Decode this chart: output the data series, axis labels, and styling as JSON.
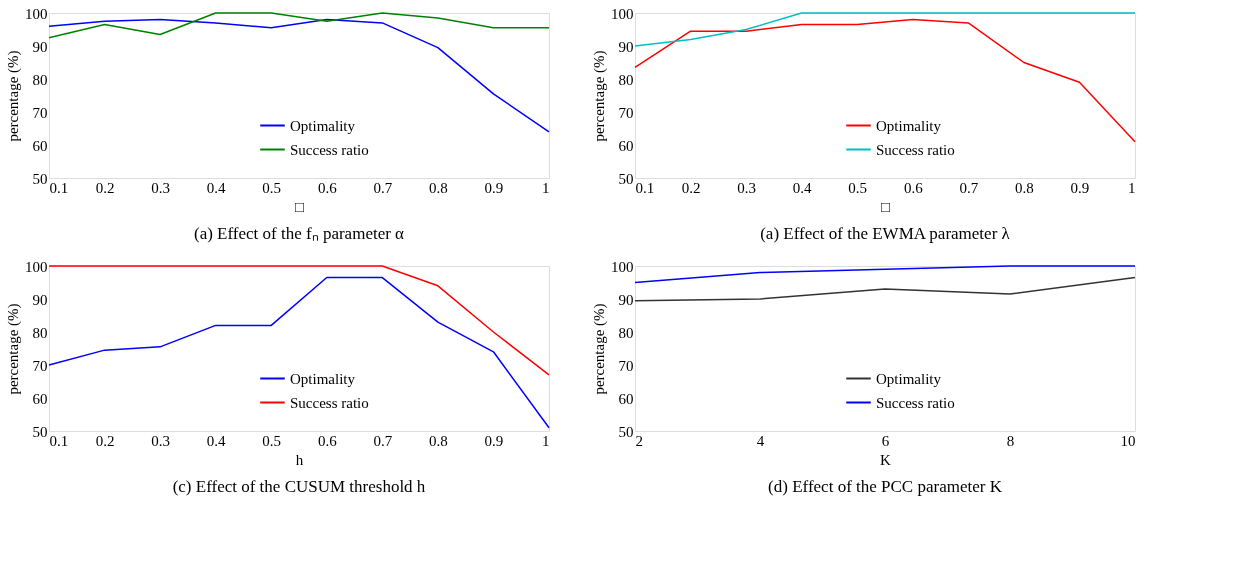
{
  "chart_data": [
    {
      "type": "line",
      "title": "(a)  Effect of the fₙ parameter  α",
      "xlabel": "□",
      "ylabel": "percentage (%)",
      "x": [
        0.1,
        0.2,
        0.3,
        0.4,
        0.5,
        0.6,
        0.7,
        0.8,
        0.9,
        1
      ],
      "xlim": [
        0.1,
        1
      ],
      "xticks": [
        0.1,
        0.2,
        0.3,
        0.4,
        0.5,
        0.6,
        0.7,
        0.8,
        0.9,
        1
      ],
      "ylim": [
        50,
        100
      ],
      "yticks": [
        50,
        60,
        70,
        80,
        90,
        100
      ],
      "legend": "bottom",
      "grid": false,
      "series": [
        {
          "name": "Optimality",
          "color": "#0000ff",
          "values": [
            96,
            97.5,
            98,
            97,
            95.5,
            98,
            97,
            89.5,
            75.5,
            64
          ]
        },
        {
          "name": "Success ratio",
          "color": "#008000",
          "values": [
            92.5,
            96.5,
            93.5,
            100,
            100,
            97.5,
            100,
            98.5,
            95.5,
            95.5
          ]
        }
      ]
    },
    {
      "type": "line",
      "title": "(a)  Effect of the EWMA parameter λ",
      "xlabel": "□",
      "ylabel": "percentage (%)",
      "x": [
        0.1,
        0.2,
        0.3,
        0.4,
        0.5,
        0.6,
        0.7,
        0.8,
        0.9,
        1
      ],
      "xlim": [
        0.1,
        1
      ],
      "xticks": [
        0.1,
        0.2,
        0.3,
        0.4,
        0.5,
        0.6,
        0.7,
        0.8,
        0.9,
        1
      ],
      "ylim": [
        50,
        100
      ],
      "yticks": [
        50,
        60,
        70,
        80,
        90,
        100
      ],
      "legend": "bottom",
      "grid": false,
      "series": [
        {
          "name": "Optimality",
          "color": "#ff0000",
          "values": [
            83.5,
            94.5,
            94.5,
            96.5,
            96.5,
            98,
            97,
            85,
            79,
            61
          ]
        },
        {
          "name": "Success ratio",
          "color": "#00bfbf",
          "values": [
            90,
            92,
            95,
            100,
            100,
            100,
            100,
            100,
            100,
            100
          ]
        }
      ]
    },
    {
      "type": "line",
      "title": "(c) Effect of the CUSUM threshold h",
      "xlabel": "h",
      "ylabel": "percentage (%)",
      "x": [
        0.1,
        0.2,
        0.3,
        0.4,
        0.5,
        0.6,
        0.7,
        0.8,
        0.9,
        1
      ],
      "xlim": [
        0.1,
        1
      ],
      "xticks": [
        0.1,
        0.2,
        0.3,
        0.4,
        0.5,
        0.6,
        0.7,
        0.8,
        0.9,
        1
      ],
      "ylim": [
        50,
        100
      ],
      "yticks": [
        50,
        60,
        70,
        80,
        90,
        100
      ],
      "legend": "bottom",
      "grid": false,
      "series": [
        {
          "name": "Optimality",
          "color": "#0000ff",
          "values": [
            70,
            74.5,
            75.5,
            82,
            82,
            96.5,
            96.5,
            83,
            74,
            51
          ]
        },
        {
          "name": "Success ratio",
          "color": "#ff0000",
          "values": [
            100,
            100,
            100,
            100,
            100,
            100,
            100,
            94,
            80,
            67
          ]
        }
      ]
    },
    {
      "type": "line",
      "title": "(d) Effect of the PCC parameter K",
      "xlabel": "K",
      "ylabel": "percentage (%)",
      "x": [
        2,
        4,
        6,
        8,
        10
      ],
      "xlim": [
        2,
        10
      ],
      "xticks": [
        2,
        4,
        6,
        8,
        10
      ],
      "ylim": [
        50,
        100
      ],
      "yticks": [
        50,
        60,
        70,
        80,
        90,
        100
      ],
      "legend": "bottom",
      "grid": false,
      "series": [
        {
          "name": "Optimality",
          "color": "#333333",
          "values": [
            89.5,
            90,
            93,
            91.5,
            96.5
          ]
        },
        {
          "name": "Success ratio",
          "color": "#0000ff",
          "values": [
            95,
            98,
            99,
            100,
            100
          ]
        }
      ]
    }
  ]
}
